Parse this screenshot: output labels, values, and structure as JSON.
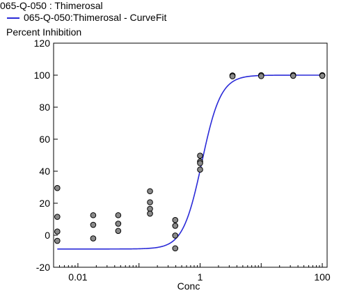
{
  "legend": {
    "scatter_label": "065-Q-050  : Thimerosal",
    "curve_label": "065-Q-050:Thimerosal - CurveFit"
  },
  "chart_data": {
    "type": "scatter",
    "title": "",
    "xlabel": "Conc",
    "ylabel": "Percent Inhibition",
    "x_scale": "log",
    "xlim": [
      0.004,
      120
    ],
    "ylim": [
      -20,
      120
    ],
    "x_ticks": [
      0.01,
      1,
      100
    ],
    "x_tick_labels": [
      "0.01",
      "1",
      "100"
    ],
    "y_ticks": [
      -20,
      0,
      20,
      40,
      60,
      80,
      100,
      120
    ],
    "y_tick_labels": [
      "-20",
      "0",
      "20",
      "40",
      "60",
      "80",
      "100",
      "120"
    ],
    "series": [
      {
        "name": "065-Q-050  : Thimerosal",
        "kind": "points",
        "color": "#8a8a8a",
        "points": [
          [
            0.0046,
            29.5
          ],
          [
            0.0046,
            11.5
          ],
          [
            0.0046,
            2.3
          ],
          [
            0.0046,
            -3.5
          ],
          [
            0.0178,
            12.5
          ],
          [
            0.0178,
            6.5
          ],
          [
            0.0178,
            -2.0
          ],
          [
            0.0457,
            12.5
          ],
          [
            0.0457,
            7.2
          ],
          [
            0.0457,
            2.7
          ],
          [
            0.1514,
            27.5
          ],
          [
            0.1514,
            20.6
          ],
          [
            0.1514,
            16.5
          ],
          [
            0.1514,
            13.5
          ],
          [
            0.3917,
            9.5
          ],
          [
            0.3917,
            5.9
          ],
          [
            0.3917,
            -0.2
          ],
          [
            0.3917,
            -8.2
          ],
          [
            1.0,
            49.7
          ],
          [
            1.0,
            46.0
          ],
          [
            1.0,
            45.0
          ],
          [
            1.0,
            41.0
          ],
          [
            3.39,
            99.8
          ],
          [
            3.39,
            99.3
          ],
          [
            10.0,
            100.0
          ],
          [
            10.0,
            99.4
          ],
          [
            33.4,
            100.1
          ],
          [
            33.4,
            99.6
          ],
          [
            100.0,
            100.0
          ],
          [
            100.0,
            99.6
          ]
        ]
      },
      {
        "name": "065-Q-050:Thimerosal - CurveFit",
        "kind": "curve",
        "color": "#2a2ad8",
        "bottom": -8.6,
        "top": 100.0,
        "ec50": 1.07,
        "hill": 2.8
      }
    ]
  }
}
